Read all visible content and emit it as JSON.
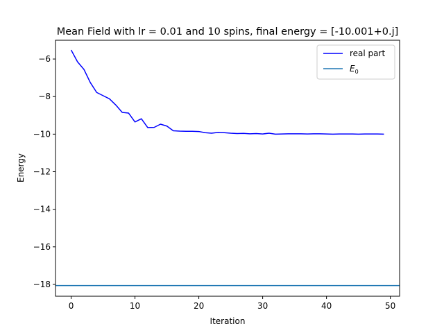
{
  "chart_data": {
    "type": "line",
    "title": "Mean Field with lr = 0.01 and 10 spins, final energy = [-10.001+0.j]",
    "xlabel": "Iteration",
    "ylabel": "Energy",
    "xlim": [
      -2.45,
      51.45
    ],
    "ylim": [
      -18.63,
      -5.0
    ],
    "xticks": [
      0,
      10,
      20,
      30,
      40,
      50
    ],
    "yticks": [
      -6,
      -8,
      -10,
      -12,
      -14,
      -16,
      -18
    ],
    "xtick_labels": [
      "0",
      "10",
      "20",
      "30",
      "40",
      "50"
    ],
    "ytick_labels": [
      "−6",
      "−8",
      "−10",
      "−12",
      "−14",
      "−16",
      "−18"
    ],
    "legend": {
      "placement": "upper right",
      "entries": [
        "real part",
        "E0"
      ]
    },
    "grid": false,
    "series": [
      {
        "name": "real part",
        "color": "#0000ff",
        "x": [
          0,
          1,
          2,
          3,
          4,
          5,
          6,
          7,
          8,
          9,
          10,
          11,
          12,
          13,
          14,
          15,
          16,
          17,
          18,
          19,
          20,
          21,
          22,
          23,
          24,
          25,
          26,
          27,
          28,
          29,
          30,
          31,
          32,
          33,
          34,
          35,
          36,
          37,
          38,
          39,
          40,
          41,
          42,
          43,
          44,
          45,
          46,
          47,
          48,
          49
        ],
        "values": [
          -5.52,
          -6.15,
          -6.55,
          -7.25,
          -7.78,
          -7.95,
          -8.12,
          -8.45,
          -8.84,
          -8.88,
          -9.35,
          -9.18,
          -9.65,
          -9.64,
          -9.47,
          -9.57,
          -9.82,
          -9.84,
          -9.85,
          -9.85,
          -9.86,
          -9.92,
          -9.95,
          -9.91,
          -9.92,
          -9.95,
          -9.97,
          -9.96,
          -9.98,
          -9.97,
          -9.99,
          -9.95,
          -10.0,
          -9.99,
          -9.98,
          -9.98,
          -9.98,
          -9.99,
          -9.98,
          -9.98,
          -9.99,
          -10.0,
          -9.99,
          -9.99,
          -9.99,
          -10.0,
          -9.99,
          -9.99,
          -9.99,
          -10.0
        ]
      },
      {
        "name": "E0",
        "type": "hline",
        "color": "#1f77b4",
        "value": -18.06
      }
    ]
  }
}
